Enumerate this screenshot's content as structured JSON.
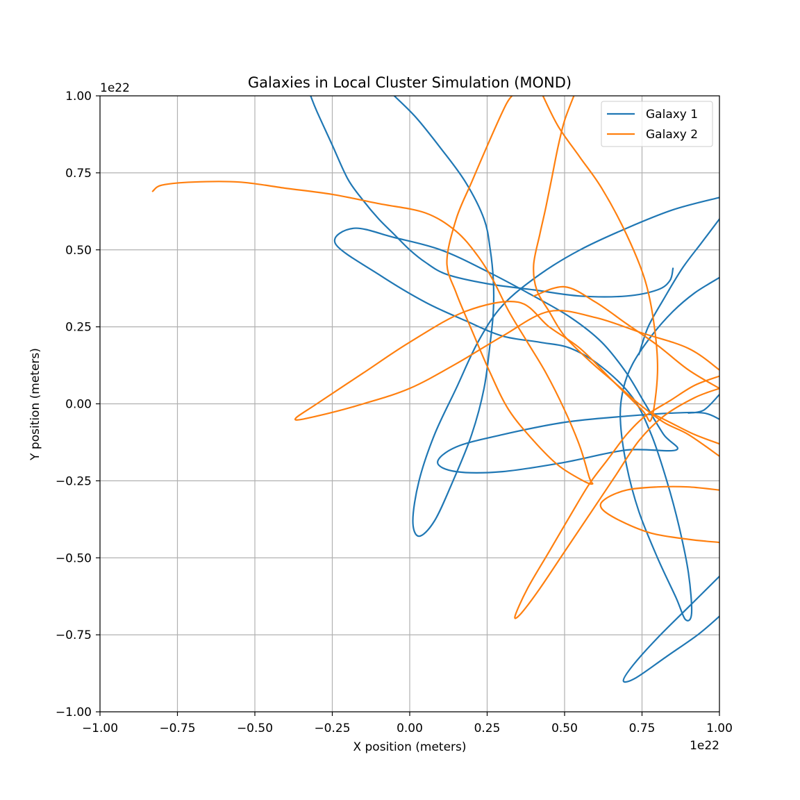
{
  "chart_data": {
    "type": "line",
    "title": "Galaxies in Local Cluster Simulation (MOND)",
    "xlabel": "X position (meters)",
    "ylabel": "Y position (meters)",
    "x_offset_label": "1e22",
    "y_offset_label": "1e22",
    "xlim": [
      -1.0,
      1.0
    ],
    "ylim": [
      -1.0,
      1.0
    ],
    "x_ticks": [
      "−1.00",
      "−0.75",
      "−0.50",
      "−0.25",
      "0.00",
      "0.25",
      "0.50",
      "0.75",
      "1.00"
    ],
    "y_ticks": [
      "−1.00",
      "−0.75",
      "−0.50",
      "−0.25",
      "0.00",
      "0.25",
      "0.50",
      "0.75",
      "1.00"
    ],
    "grid": true,
    "legend_position": "top-right",
    "series": [
      {
        "name": "Galaxy 1",
        "color": "#1f77b4",
        "segments": [
          [
            [
              0.85,
              0.44
            ],
            [
              0.84,
              0.4
            ],
            [
              0.8,
              0.37
            ],
            [
              0.7,
              0.35
            ],
            [
              0.55,
              0.35
            ],
            [
              0.4,
              0.37
            ],
            [
              0.25,
              0.39
            ],
            [
              0.12,
              0.42
            ],
            [
              0.05,
              0.46
            ],
            [
              0.0,
              0.5
            ],
            [
              -0.05,
              0.55
            ],
            [
              -0.1,
              0.6
            ],
            [
              -0.15,
              0.66
            ],
            [
              -0.2,
              0.73
            ],
            [
              -0.25,
              0.84
            ],
            [
              -0.3,
              0.95
            ],
            [
              -0.32,
              1.0
            ]
          ],
          [
            [
              -0.05,
              1.0
            ],
            [
              0.02,
              0.93
            ],
            [
              0.1,
              0.83
            ],
            [
              0.18,
              0.72
            ],
            [
              0.24,
              0.6
            ],
            [
              0.26,
              0.5
            ],
            [
              0.27,
              0.4
            ],
            [
              0.27,
              0.3
            ],
            [
              0.26,
              0.2
            ],
            [
              0.24,
              0.05
            ],
            [
              0.2,
              -0.1
            ],
            [
              0.14,
              -0.25
            ],
            [
              0.08,
              -0.38
            ],
            [
              0.03,
              -0.43
            ],
            [
              0.01,
              -0.38
            ],
            [
              0.03,
              -0.25
            ],
            [
              0.08,
              -0.1
            ],
            [
              0.15,
              0.05
            ],
            [
              0.22,
              0.2
            ],
            [
              0.3,
              0.32
            ],
            [
              0.42,
              0.42
            ],
            [
              0.55,
              0.5
            ],
            [
              0.7,
              0.57
            ],
            [
              0.85,
              0.63
            ],
            [
              1.0,
              0.67
            ]
          ]
        ],
        "segments_extra": [
          [
            [
              1.0,
              0.41
            ],
            [
              0.92,
              0.36
            ],
            [
              0.85,
              0.3
            ],
            [
              0.78,
              0.22
            ],
            [
              0.72,
              0.13
            ],
            [
              0.69,
              0.05
            ],
            [
              0.68,
              -0.05
            ],
            [
              0.7,
              -0.2
            ],
            [
              0.74,
              -0.35
            ],
            [
              0.8,
              -0.5
            ],
            [
              0.86,
              -0.63
            ],
            [
              0.89,
              -0.7
            ],
            [
              0.91,
              -0.68
            ],
            [
              0.9,
              -0.55
            ],
            [
              0.87,
              -0.4
            ],
            [
              0.83,
              -0.25
            ],
            [
              0.78,
              -0.1
            ],
            [
              0.72,
              0.02
            ],
            [
              0.62,
              0.12
            ],
            [
              0.52,
              0.18
            ],
            [
              0.42,
              0.2
            ],
            [
              0.3,
              0.22
            ],
            [
              0.18,
              0.27
            ],
            [
              0.05,
              0.33
            ],
            [
              -0.1,
              0.42
            ],
            [
              -0.24,
              0.52
            ],
            [
              -0.18,
              0.57
            ],
            [
              -0.05,
              0.54
            ],
            [
              0.1,
              0.5
            ],
            [
              0.25,
              0.43
            ],
            [
              0.4,
              0.35
            ],
            [
              0.52,
              0.28
            ],
            [
              0.62,
              0.2
            ],
            [
              0.7,
              0.1
            ],
            [
              0.76,
              0.0
            ],
            [
              0.82,
              -0.1
            ],
            [
              0.86,
              -0.15
            ],
            [
              0.7,
              -0.15
            ],
            [
              0.5,
              -0.19
            ],
            [
              0.3,
              -0.22
            ],
            [
              0.15,
              -0.22
            ],
            [
              0.09,
              -0.19
            ],
            [
              0.15,
              -0.14
            ],
            [
              0.3,
              -0.1
            ],
            [
              0.5,
              -0.06
            ],
            [
              0.7,
              -0.04
            ],
            [
              0.85,
              -0.03
            ],
            [
              0.95,
              -0.03
            ],
            [
              1.0,
              -0.05
            ]
          ],
          [
            [
              1.0,
              0.6
            ],
            [
              0.94,
              0.52
            ],
            [
              0.88,
              0.44
            ],
            [
              0.82,
              0.34
            ],
            [
              0.77,
              0.25
            ],
            [
              0.74,
              0.16
            ]
          ],
          [
            [
              1.0,
              0.03
            ],
            [
              0.95,
              -0.02
            ],
            [
              0.9,
              -0.03
            ]
          ],
          [
            [
              1.0,
              -0.56
            ],
            [
              0.9,
              -0.66
            ],
            [
              0.8,
              -0.76
            ],
            [
              0.72,
              -0.85
            ],
            [
              0.69,
              -0.9
            ],
            [
              0.73,
              -0.89
            ],
            [
              0.83,
              -0.82
            ],
            [
              0.93,
              -0.75
            ],
            [
              1.0,
              -0.69
            ]
          ]
        ]
      },
      {
        "name": "Galaxy 2",
        "color": "#ff7f0e",
        "segments": [
          [
            [
              -0.83,
              0.69
            ],
            [
              -0.8,
              0.71
            ],
            [
              -0.7,
              0.72
            ],
            [
              -0.55,
              0.72
            ],
            [
              -0.4,
              0.7
            ],
            [
              -0.25,
              0.68
            ],
            [
              -0.1,
              0.65
            ],
            [
              0.05,
              0.62
            ],
            [
              0.15,
              0.56
            ],
            [
              0.22,
              0.48
            ],
            [
              0.27,
              0.4
            ],
            [
              0.32,
              0.3
            ],
            [
              0.38,
              0.2
            ],
            [
              0.44,
              0.1
            ],
            [
              0.5,
              -0.02
            ],
            [
              0.55,
              -0.14
            ],
            [
              0.58,
              -0.24
            ],
            [
              0.59,
              -0.26
            ],
            [
              0.56,
              -0.25
            ],
            [
              0.48,
              -0.2
            ],
            [
              0.4,
              -0.12
            ],
            [
              0.32,
              -0.02
            ],
            [
              0.26,
              0.1
            ],
            [
              0.2,
              0.24
            ],
            [
              0.15,
              0.36
            ],
            [
              0.12,
              0.46
            ],
            [
              0.15,
              0.6
            ],
            [
              0.2,
              0.72
            ],
            [
              0.26,
              0.86
            ],
            [
              0.31,
              0.97
            ],
            [
              0.33,
              1.0
            ]
          ]
        ],
        "segments_extra": [
          [
            [
              0.53,
              1.0
            ],
            [
              0.5,
              0.92
            ],
            [
              0.48,
              0.84
            ],
            [
              0.46,
              0.74
            ],
            [
              0.44,
              0.64
            ],
            [
              0.42,
              0.55
            ],
            [
              0.4,
              0.45
            ],
            [
              0.41,
              0.37
            ],
            [
              0.45,
              0.3
            ],
            [
              0.5,
              0.22
            ],
            [
              0.58,
              0.14
            ],
            [
              0.66,
              0.07
            ],
            [
              0.74,
              0.0
            ],
            [
              0.82,
              -0.06
            ],
            [
              0.9,
              -0.1
            ],
            [
              1.0,
              -0.17
            ]
          ],
          [
            [
              0.43,
              1.0
            ],
            [
              0.48,
              0.9
            ],
            [
              0.55,
              0.8
            ],
            [
              0.62,
              0.7
            ],
            [
              0.7,
              0.55
            ],
            [
              0.76,
              0.4
            ],
            [
              0.79,
              0.25
            ],
            [
              0.8,
              0.1
            ],
            [
              0.78,
              -0.05
            ],
            [
              0.75,
              -0.02
            ],
            [
              0.65,
              0.08
            ],
            [
              0.55,
              0.18
            ],
            [
              0.45,
              0.25
            ],
            [
              0.35,
              0.33
            ],
            [
              0.18,
              0.3
            ],
            [
              0.0,
              0.2
            ],
            [
              -0.15,
              0.1
            ],
            [
              -0.3,
              0.0
            ],
            [
              -0.37,
              -0.05
            ],
            [
              -0.3,
              -0.04
            ],
            [
              -0.15,
              0.0
            ],
            [
              0.0,
              0.05
            ],
            [
              0.15,
              0.13
            ],
            [
              0.3,
              0.22
            ],
            [
              0.45,
              0.3
            ],
            [
              0.6,
              0.28
            ],
            [
              0.75,
              0.23
            ],
            [
              0.9,
              0.18
            ],
            [
              1.0,
              0.11
            ]
          ],
          [
            [
              0.4,
              0.35
            ],
            [
              0.5,
              0.38
            ],
            [
              0.6,
              0.33
            ],
            [
              0.7,
              0.26
            ],
            [
              0.8,
              0.19
            ],
            [
              0.9,
              0.11
            ],
            [
              1.0,
              0.05
            ]
          ],
          [
            [
              1.0,
              0.09
            ],
            [
              0.92,
              0.06
            ],
            [
              0.84,
              0.01
            ],
            [
              0.76,
              -0.04
            ],
            [
              0.7,
              -0.1
            ],
            [
              0.64,
              -0.18
            ],
            [
              0.58,
              -0.26
            ],
            [
              0.52,
              -0.36
            ],
            [
              0.45,
              -0.48
            ],
            [
              0.38,
              -0.6
            ],
            [
              0.34,
              -0.69
            ],
            [
              0.36,
              -0.68
            ],
            [
              0.42,
              -0.6
            ],
            [
              0.5,
              -0.48
            ],
            [
              0.58,
              -0.36
            ],
            [
              0.66,
              -0.24
            ],
            [
              0.74,
              -0.12
            ],
            [
              0.82,
              -0.04
            ],
            [
              0.92,
              0.02
            ],
            [
              1.0,
              0.05
            ]
          ],
          [
            [
              1.0,
              -0.13
            ],
            [
              0.92,
              -0.1
            ],
            [
              0.84,
              -0.06
            ],
            [
              0.78,
              -0.03
            ]
          ],
          [
            [
              1.0,
              -0.28
            ],
            [
              0.9,
              -0.27
            ],
            [
              0.8,
              -0.27
            ],
            [
              0.7,
              -0.28
            ],
            [
              0.63,
              -0.31
            ],
            [
              0.62,
              -0.34
            ],
            [
              0.68,
              -0.38
            ],
            [
              0.78,
              -0.42
            ],
            [
              0.9,
              -0.44
            ],
            [
              1.0,
              -0.45
            ]
          ]
        ]
      }
    ]
  }
}
